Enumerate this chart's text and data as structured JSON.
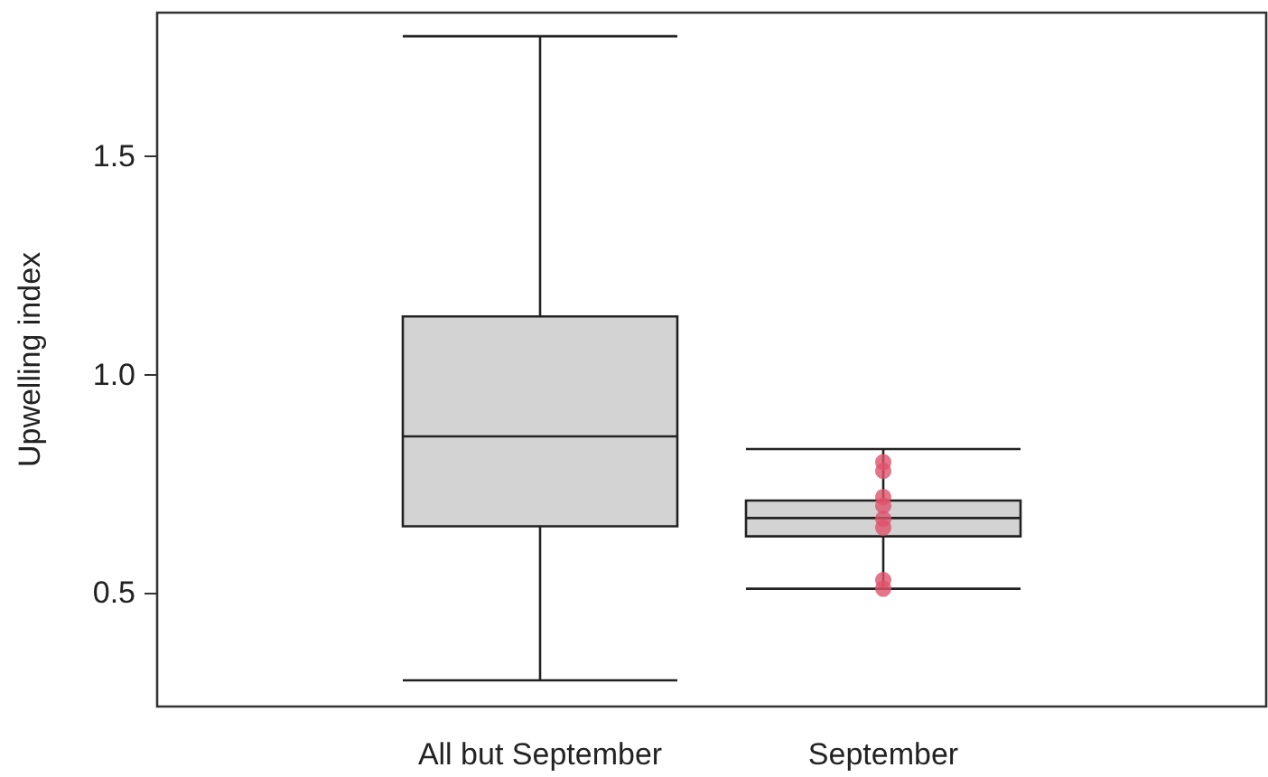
{
  "chart_data": {
    "type": "box",
    "ylabel": "Upwelling index",
    "categories": [
      "All but September",
      "September"
    ],
    "series": [
      {
        "color": "#d3d3d3",
        "boxes": [
          {
            "low": 0.3,
            "q1": 0.653,
            "median": 0.859,
            "q3": 1.134,
            "high": 1.776
          },
          {
            "low": 0.51,
            "q1": 0.63,
            "median": 0.672,
            "q3": 0.712,
            "high": 0.83
          }
        ]
      },
      {
        "type": "scatter",
        "color": "#df536b",
        "x": [
          "September",
          "September",
          "September",
          "September",
          "September",
          "September",
          "September",
          "September"
        ],
        "values": [
          0.8,
          0.78,
          0.72,
          0.7,
          0.67,
          0.65,
          0.53,
          0.51
        ]
      }
    ],
    "ylim": [
      0.24,
      1.83
    ],
    "yticks": [
      0.5,
      {
        "value": 1,
        "label": "1.0"
      },
      1.5
    ],
    "marker": "circle",
    "grid": false
  }
}
